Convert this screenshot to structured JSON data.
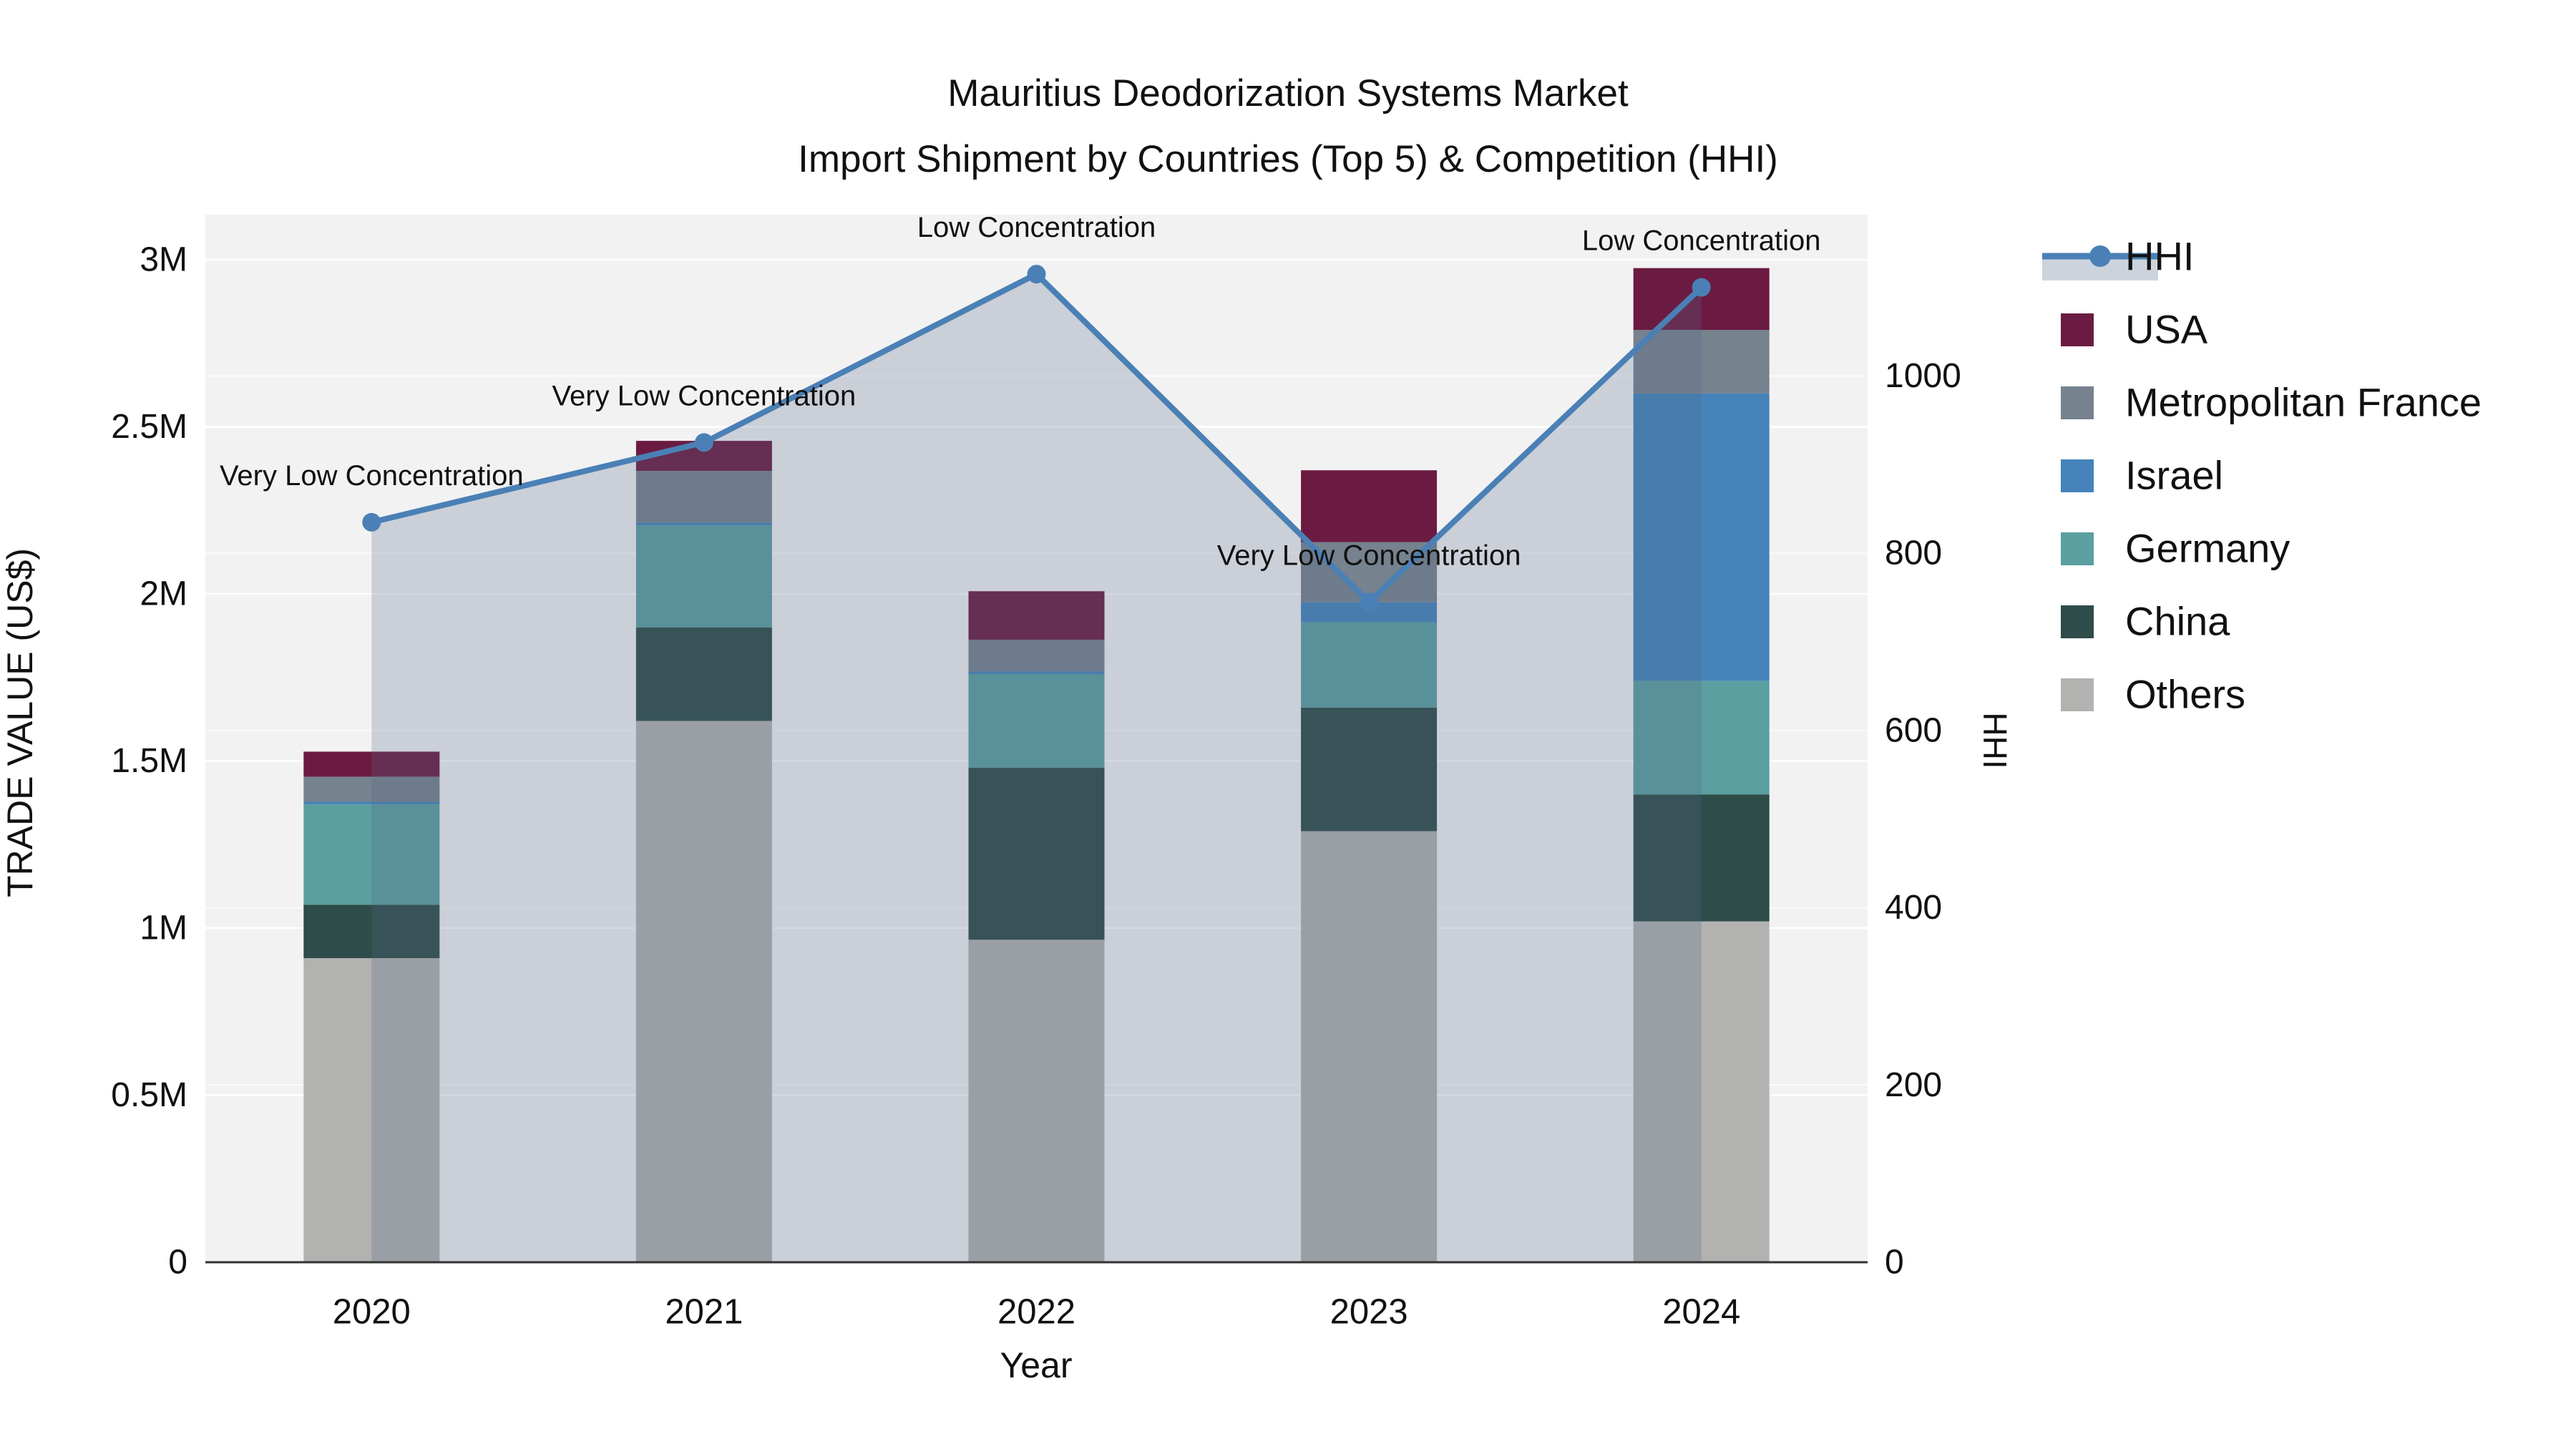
{
  "title": {
    "line1": "Mauritius Deodorization Systems Market",
    "line2": "Import Shipment by Countries (Top 5) & Competition (HHI)"
  },
  "chart_data": {
    "type": "bar+line",
    "subtype": "stacked-bar-with-secondary-axis-line",
    "categories": [
      "2020",
      "2021",
      "2022",
      "2023",
      "2024"
    ],
    "xlabel": "Year",
    "ylabel_left": "TRADE VALUE (US$)",
    "ylabel_right": "HHI",
    "ylim_left": [
      0,
      3000000
    ],
    "ylim_right": [
      0,
      1180
    ],
    "grid": true,
    "legend_position": "right",
    "yticks_left": {
      "values": [
        0,
        500000,
        1000000,
        1500000,
        2000000,
        2500000,
        3000000
      ],
      "labels": [
        "0",
        "0.5M",
        "1M",
        "1.5M",
        "2M",
        "2.5M",
        "3M"
      ]
    },
    "yticks_right": {
      "values": [
        0,
        200,
        400,
        600,
        800,
        1000
      ],
      "labels": [
        "0",
        "200",
        "400",
        "600",
        "800",
        "1000"
      ]
    },
    "series": [
      {
        "name": "Others",
        "color": "#b2b2b0",
        "values": [
          910000,
          1620000,
          965000,
          1290000,
          1020000
        ]
      },
      {
        "name": "China",
        "color": "#2e4c49",
        "values": [
          160000,
          280000,
          515000,
          370000,
          380000
        ]
      },
      {
        "name": "Germany",
        "color": "#5b9fa0",
        "values": [
          300000,
          305000,
          280000,
          255000,
          340000
        ]
      },
      {
        "name": "Israel",
        "color": "#4583ba",
        "values": [
          8000,
          8000,
          8000,
          60000,
          860000
        ]
      },
      {
        "name": "Metropolitan France",
        "color": "#76828e",
        "values": [
          75000,
          155000,
          95000,
          180000,
          190000
        ]
      },
      {
        "name": "USA",
        "color": "#6b1b41",
        "values": [
          75000,
          90000,
          145000,
          215000,
          185000
        ]
      }
    ],
    "hhi": {
      "name": "HHI",
      "line_color": "#4a80b5",
      "area_fill": "rgba(85,105,135,0.25)",
      "values": [
        835,
        925,
        1115,
        745,
        1100
      ],
      "annotations": [
        "Very Low Concentration",
        "Very Low Concentration",
        "Low Concentration",
        "Very Low Concentration",
        "Low Concentration"
      ]
    },
    "legend": [
      {
        "label": "HHI",
        "type": "line",
        "color": "#4a80b5",
        "band_color": "#ccd3dc"
      },
      {
        "label": "USA",
        "type": "swatch",
        "color": "#6b1b41"
      },
      {
        "label": "Metropolitan France",
        "type": "swatch",
        "color": "#76828e"
      },
      {
        "label": "Israel",
        "type": "swatch",
        "color": "#4583ba"
      },
      {
        "label": "Germany",
        "type": "swatch",
        "color": "#5b9fa0"
      },
      {
        "label": "China",
        "type": "swatch",
        "color": "#2e4c49"
      },
      {
        "label": "Others",
        "type": "swatch",
        "color": "#b2b2b0"
      }
    ],
    "colors": {
      "plot_background": "#f2f2f3",
      "gridline": "#ffffff",
      "axis_line": "#333333",
      "text": "#111111"
    }
  }
}
